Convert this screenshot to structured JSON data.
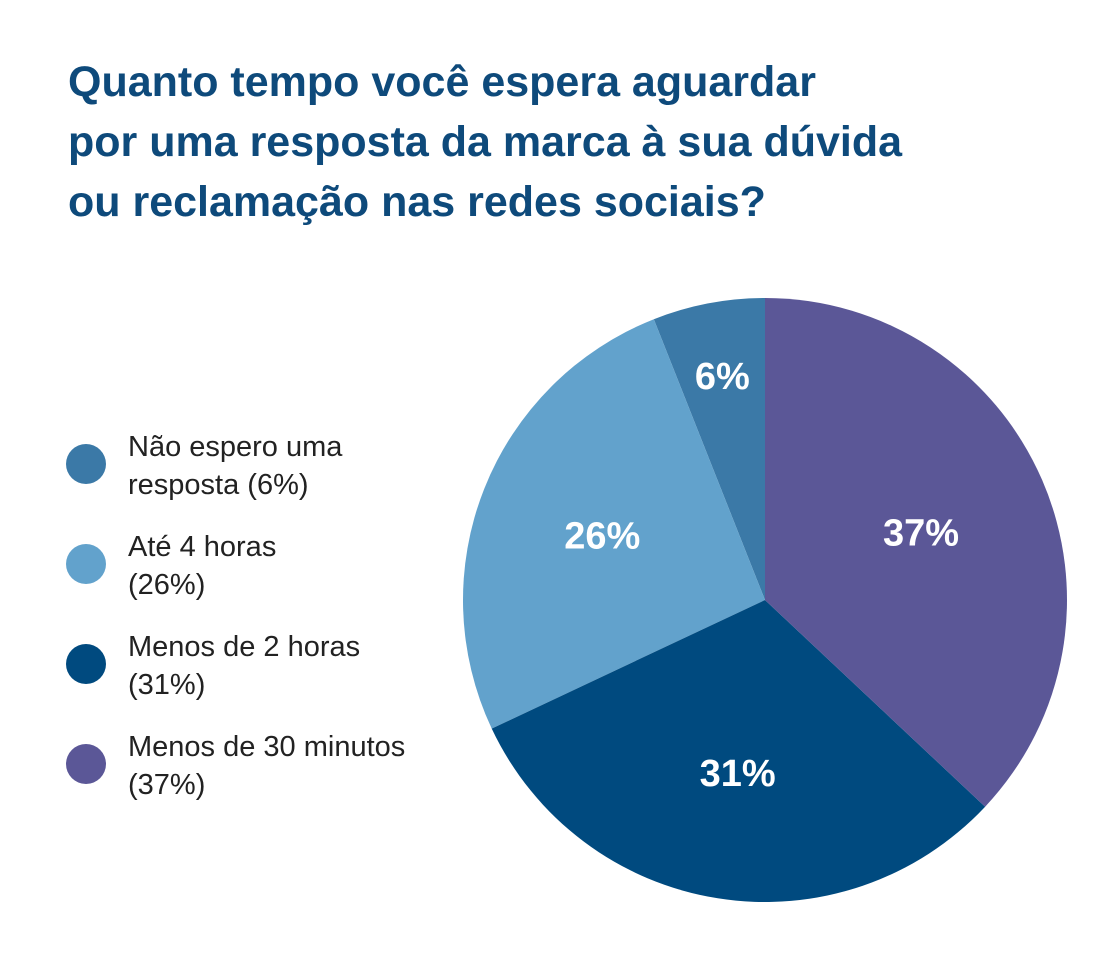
{
  "chart_data": {
    "type": "pie",
    "title_lines": [
      "Quanto tempo você espera aguardar",
      "por uma resposta da marca à sua dúvida",
      "ou reclamação nas redes sociais?"
    ],
    "slices": [
      {
        "label_lines": [
          "Não espero uma",
          "resposta (6%)"
        ],
        "value": 6,
        "value_label": "6%",
        "color": "#3b79a7"
      },
      {
        "label_lines": [
          "Até 4 horas",
          "(26%)"
        ],
        "value": 26,
        "value_label": "26%",
        "color": "#62a2cc"
      },
      {
        "label_lines": [
          "Menos de 2 horas",
          "(31%)"
        ],
        "value": 31,
        "value_label": "31%",
        "color": "#004a7f"
      },
      {
        "label_lines": [
          "Menos de 30 minutos",
          "(37%)"
        ],
        "value": 37,
        "value_label": "37%",
        "color": "#5b5797"
      }
    ],
    "legend_position": "left",
    "start_angle": "top, counter-clockwise"
  }
}
